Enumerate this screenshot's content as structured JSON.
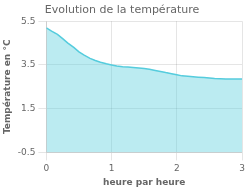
{
  "chart_data": {
    "type": "area",
    "title": "Evolution de la température",
    "xlabel": "heure par heure",
    "ylabel": "Température en °C",
    "x": [
      0,
      0.08,
      0.17,
      0.25,
      0.33,
      0.42,
      0.5,
      0.58,
      0.67,
      0.75,
      0.83,
      0.92,
      1.0,
      1.08,
      1.17,
      1.25,
      1.33,
      1.42,
      1.5,
      1.58,
      1.67,
      1.75,
      1.83,
      1.92,
      2.0,
      2.08,
      2.17,
      2.25,
      2.33,
      2.42,
      2.5,
      2.58,
      2.67,
      2.75,
      2.83,
      2.92,
      3.0
    ],
    "values": [
      5.2,
      5.05,
      4.9,
      4.7,
      4.5,
      4.3,
      4.1,
      3.95,
      3.8,
      3.7,
      3.62,
      3.55,
      3.5,
      3.45,
      3.42,
      3.4,
      3.38,
      3.36,
      3.34,
      3.3,
      3.25,
      3.2,
      3.15,
      3.1,
      3.05,
      3.0,
      2.98,
      2.96,
      2.94,
      2.92,
      2.9,
      2.88,
      2.87,
      2.86,
      2.86,
      2.86,
      2.86
    ],
    "color": "#55ccdd",
    "xlim": [
      0,
      3
    ],
    "ylim": [
      -0.5,
      5.5
    ],
    "xticks": [
      0,
      1,
      2,
      3
    ],
    "yticks": [
      -0.5,
      1.5,
      3.5,
      5.5
    ],
    "grid": true
  }
}
